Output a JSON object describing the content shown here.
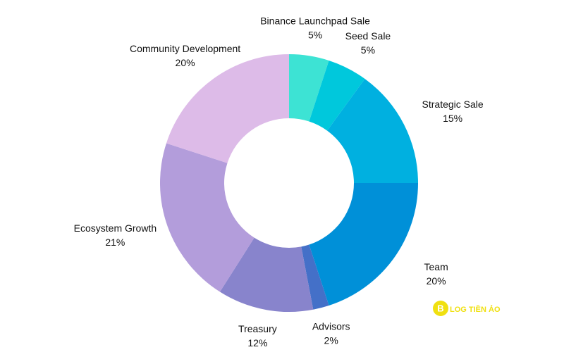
{
  "chart_data": {
    "type": "donut",
    "categories": [
      "Binance Launchpad Sale",
      "Seed Sale",
      "Strategic Sale",
      "Team",
      "Advisors",
      "Treasury",
      "Ecosystem Growth",
      "Community Development"
    ],
    "values": [
      5,
      5,
      15,
      20,
      2,
      12,
      21,
      20
    ],
    "value_labels": [
      "5%",
      "5%",
      "15%",
      "20%",
      "2%",
      "12%",
      "21%",
      "20%"
    ],
    "colors": [
      "#3de3d4",
      "#00c8dc",
      "#00b0e0",
      "#0090d8",
      "#4470c8",
      "#8884cc",
      "#b39ddb",
      "#ddbbe8"
    ],
    "watermark": "LOG TIỀN ẢO"
  }
}
